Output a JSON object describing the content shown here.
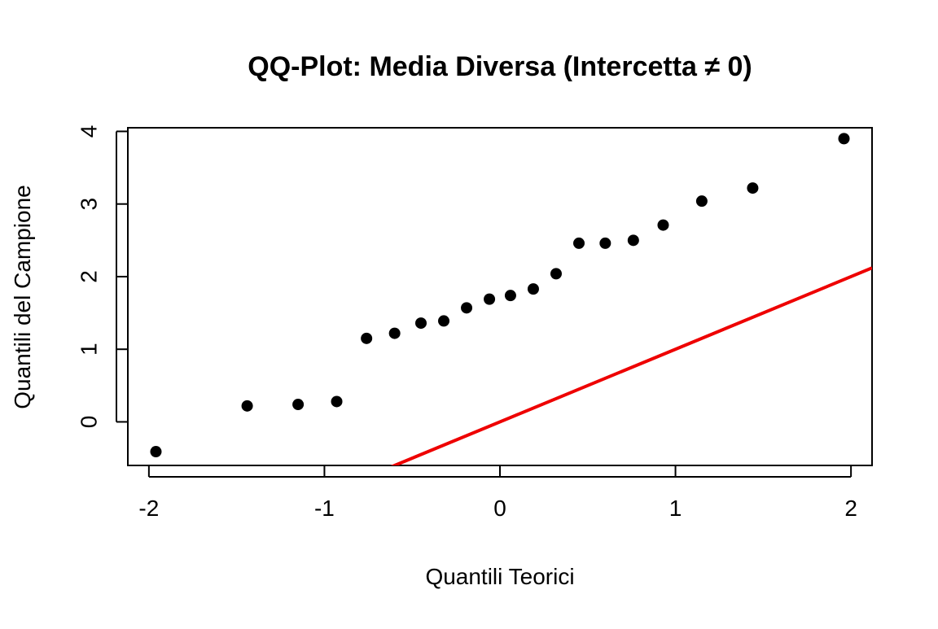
{
  "colors": {
    "points": "#000000",
    "reference_line": "#ee0000",
    "axes": "#000000",
    "background": "#ffffff"
  },
  "chart_data": {
    "type": "scatter",
    "title": "QQ-Plot: Media Diversa (Intercetta ≠ 0)",
    "xlabel": "Quantili Teorici",
    "ylabel": "Quantili del Campione",
    "xlim": [
      -2.12,
      2.12
    ],
    "ylim": [
      -0.6,
      4.05
    ],
    "x_ticks": [
      -2,
      -1,
      0,
      1,
      2
    ],
    "x_tick_labels": [
      "-2",
      "-1",
      "0",
      "1",
      "2"
    ],
    "y_ticks": [
      0,
      1,
      2,
      3,
      4
    ],
    "y_tick_labels": [
      "0",
      "1",
      "2",
      "3",
      "4"
    ],
    "grid": false,
    "legend": "none",
    "series": [
      {
        "type": "scatter",
        "marker": "filled-circle",
        "x": [
          -1.96,
          -1.44,
          -1.15,
          -0.93,
          -0.76,
          -0.6,
          -0.45,
          -0.32,
          -0.19,
          -0.06,
          0.06,
          0.19,
          0.32,
          0.45,
          0.6,
          0.76,
          0.93,
          1.15,
          1.44,
          1.96
        ],
        "y": [
          -0.41,
          0.22,
          0.24,
          0.28,
          1.15,
          1.22,
          1.36,
          1.39,
          1.57,
          1.69,
          1.74,
          1.83,
          2.04,
          2.46,
          2.46,
          2.5,
          2.71,
          3.04,
          3.22,
          3.9
        ]
      },
      {
        "type": "line",
        "slope": 1,
        "intercept": 0
      }
    ]
  }
}
